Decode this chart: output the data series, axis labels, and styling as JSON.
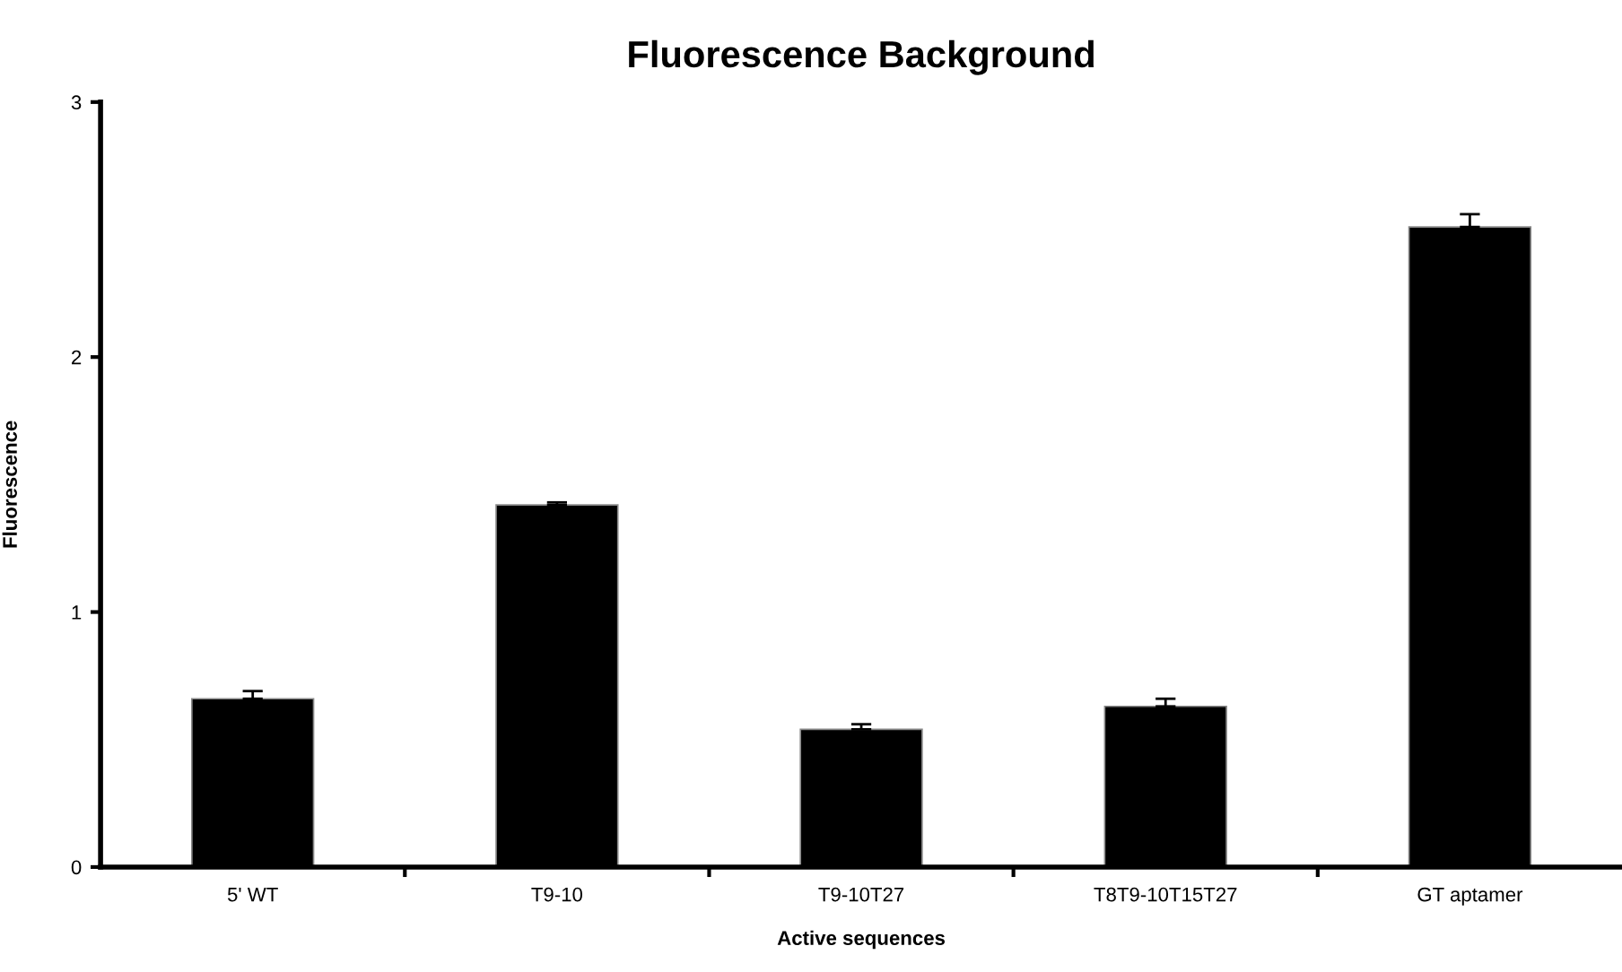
{
  "chart_data": {
    "type": "bar",
    "title": "Fluorescence Background",
    "xlabel": "Active sequences",
    "ylabel": "Fluorescence",
    "categories": [
      "5' WT",
      "T9-10",
      "T9-10T27",
      "T8T9-10T15T27",
      "GT aptamer"
    ],
    "values": [
      0.66,
      1.42,
      0.54,
      0.63,
      2.51
    ],
    "errors": [
      [
        0.66,
        0.69
      ],
      [
        1.42,
        1.43
      ],
      [
        0.54,
        0.56
      ],
      [
        0.63,
        0.66
      ],
      [
        2.51,
        2.56
      ]
    ],
    "color": "#000000",
    "ylim": [
      0,
      3
    ],
    "yticks": [
      0,
      1,
      2,
      3
    ],
    "grid": false,
    "legend": false
  }
}
